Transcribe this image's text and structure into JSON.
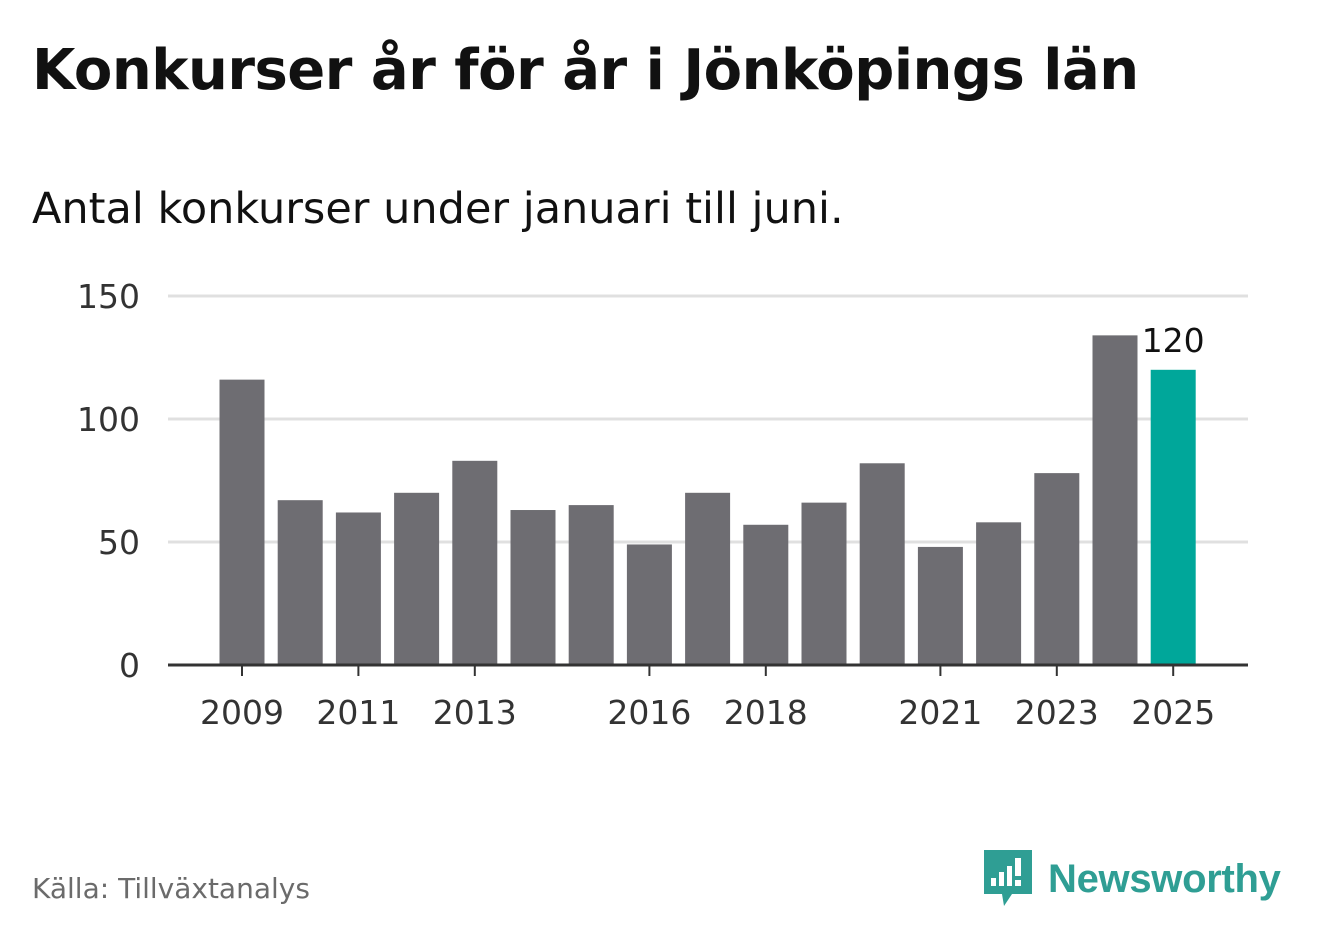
{
  "title": "Konkurser år för år i Jönköpings län",
  "subtitle": "Antal konkurser under januari till juni.",
  "source": "Källa: Tillväxtanalys",
  "brand": {
    "name": "Newsworthy",
    "icon": "bar-chart-speech-bubble-icon"
  },
  "colors": {
    "bar": "#6e6d72",
    "highlight": "#00a79a",
    "grid": "#e0e0e0",
    "axis": "#333333",
    "brand": "#2f9e94"
  },
  "chart_data": {
    "type": "bar",
    "categories": [
      "2009",
      "2010",
      "2011",
      "2012",
      "2013",
      "2014",
      "2015",
      "2016",
      "2017",
      "2018",
      "2019",
      "2020",
      "2021",
      "2022",
      "2023",
      "2024",
      "2025"
    ],
    "values": [
      116,
      67,
      62,
      70,
      83,
      63,
      65,
      49,
      70,
      57,
      66,
      82,
      48,
      58,
      78,
      134,
      120
    ],
    "x_tick_labels": [
      "2009",
      "2011",
      "2013",
      "2016",
      "2018",
      "2021",
      "2023",
      "2025"
    ],
    "y_ticks": [
      0,
      50,
      100,
      150
    ],
    "ylim": [
      0,
      150
    ],
    "highlight_category": "2025",
    "data_labels": [
      {
        "category": "2025",
        "text": "120"
      }
    ],
    "grid": true,
    "title": "Konkurser år för år i Jönköpings län",
    "subtitle": "Antal konkurser under januari till juni."
  }
}
